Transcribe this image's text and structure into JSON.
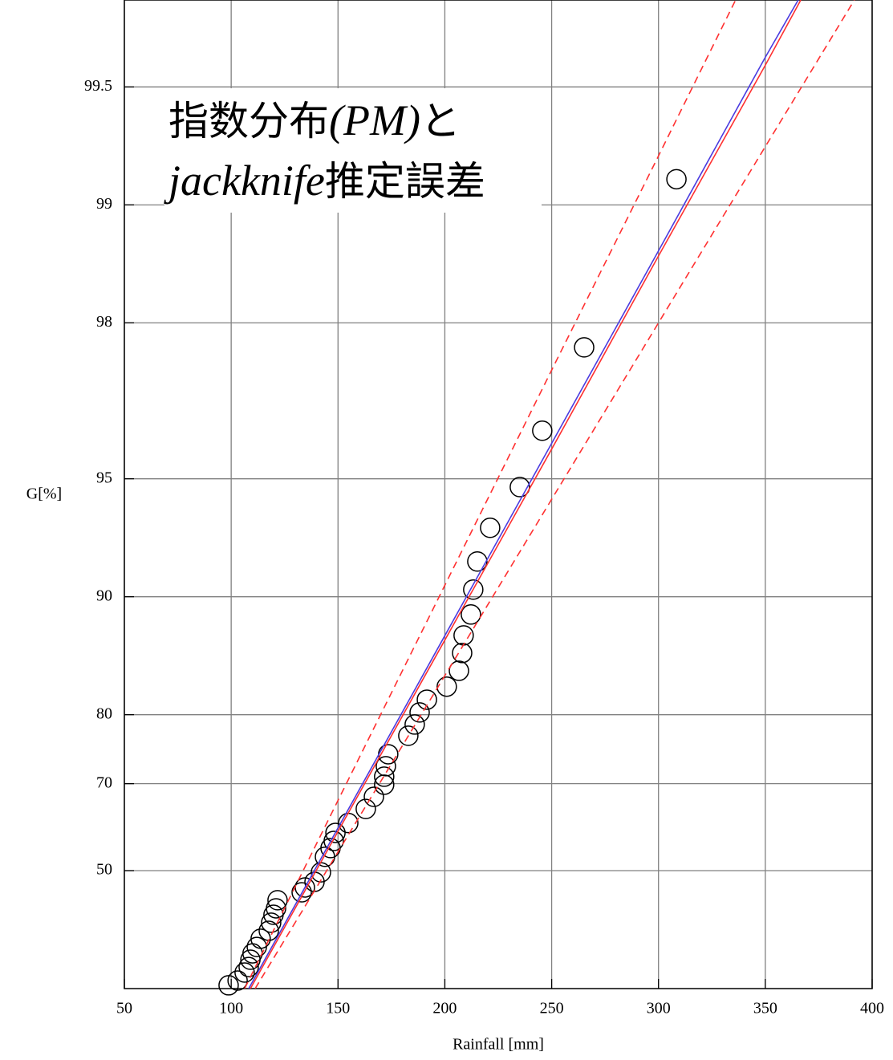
{
  "chart_data": {
    "type": "scatter",
    "xlabel": "Rainfall [mm]",
    "ylabel": "G[%]",
    "xlim": [
      50,
      400
    ],
    "ylim": [
      0,
      99.7
    ],
    "yscale": "exponential-probability",
    "xticks": [
      50,
      100,
      150,
      200,
      250,
      300,
      350,
      400
    ],
    "yticks": [
      50,
      70,
      80,
      90,
      95,
      98,
      99,
      99.5
    ],
    "grid": true,
    "annotation": [
      [
        "指数分布",
        "(PM)",
        "と"
      ],
      [
        "jackknife",
        "推定誤差"
      ]
    ],
    "series": [
      {
        "style": "markers",
        "color": "#000000",
        "x": [
          308.4,
          265.2,
          245.6,
          235.1,
          221.2,
          215.2,
          213.3,
          212.2,
          208.8,
          208.1,
          206.6,
          200.9,
          191.6,
          188.2,
          185.9,
          182.9,
          173.5,
          172.4,
          171.6,
          171.6,
          166.8,
          163.0,
          154.8,
          148.8,
          148.0,
          146.5,
          143.9,
          142.0,
          139.0,
          134.5,
          133.0,
          121.7,
          121.0,
          119.8,
          118.7,
          117.6,
          113.8,
          112.0,
          110.0,
          109.0,
          108.2,
          106.3,
          103.0,
          98.8
        ],
        "values": [
          99.14,
          97.69,
          96.23,
          94.75,
          93.33,
          91.87,
          90.41,
          88.9,
          87.45,
          86.08,
          84.55,
          83.04,
          81.69,
          80.26,
          78.81,
          77.37,
          74.77,
          72.93,
          71.21,
          69.82,
          67.6,
          65.2,
          62.2,
          59.95,
          58,
          56.2,
          53.9,
          49.5,
          46.6,
          44.8,
          43.2,
          40.5,
          37.6,
          35.2,
          32.1,
          28.8,
          25.4,
          21.7,
          18.7,
          15.6,
          11.9,
          9.0,
          4.6,
          1.9
        ]
      },
      {
        "style": "solid",
        "color": "#ff3030",
        "x": [
          109,
          150,
          200,
          250,
          300,
          350,
          366.6
        ],
        "values": [
          0,
          60.3,
          87.1,
          95.8,
          98.65,
          99.56,
          99.7
        ]
      },
      {
        "style": "solid",
        "color": "#4a3be0",
        "x": [
          108.2,
          150,
          200,
          250,
          300,
          350,
          365.4
        ],
        "values": [
          0,
          61.1,
          87.43,
          95.94,
          98.69,
          99.58,
          99.7
        ]
      },
      {
        "style": "dashed",
        "color": "#ff3030",
        "x": [
          106.3,
          150,
          200,
          250,
          300,
          336.1
        ],
        "values": [
          0,
          66.9,
          90.65,
          97.36,
          99.25,
          99.7
        ]
      },
      {
        "style": "dashed",
        "color": "#ff3030",
        "x": [
          111.2,
          150,
          200,
          250,
          300,
          350,
          391.7
        ],
        "values": [
          0,
          55.2,
          84.1,
          94.36,
          98.0,
          99.29,
          99.7
        ]
      }
    ]
  }
}
